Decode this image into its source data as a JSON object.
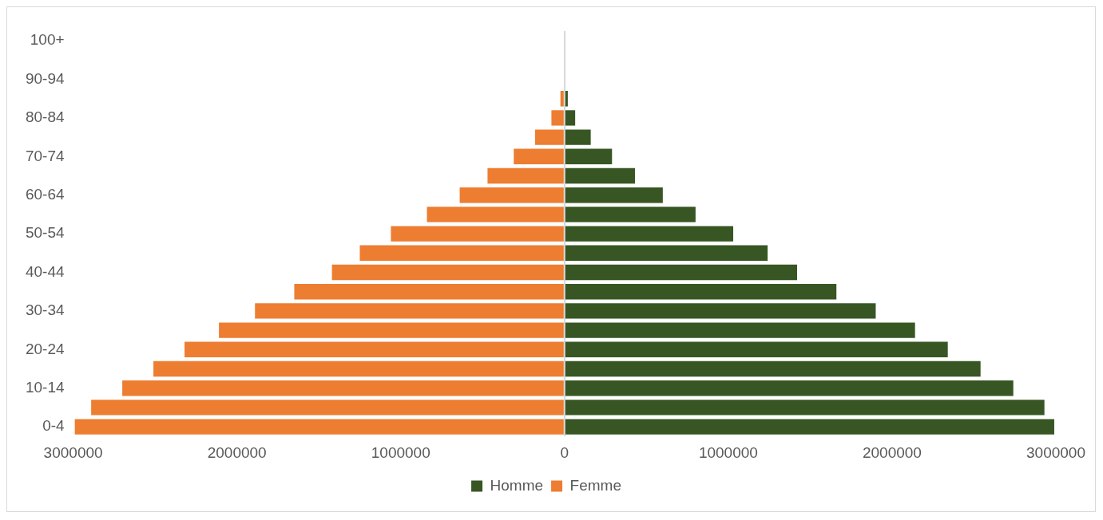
{
  "chart_data": {
    "type": "bar",
    "orientation": "horizontal",
    "stacked": true,
    "categories": [
      "100+",
      null,
      "90-94",
      null,
      "80-84",
      null,
      "70-74",
      null,
      "60-64",
      null,
      "50-54",
      null,
      "40-44",
      null,
      "30-34",
      null,
      "20-24",
      null,
      "10-14",
      null,
      "0-4"
    ],
    "series": [
      {
        "name": "Homme",
        "color": "#375623",
        "values": [
          0,
          0,
          0,
          20000,
          65000,
          160000,
          290000,
          430000,
          600000,
          800000,
          1030000,
          1240000,
          1420000,
          1660000,
          1900000,
          2140000,
          2340000,
          2540000,
          2740000,
          2930000,
          2990000
        ]
      },
      {
        "name": "Femme",
        "color": "#ed7d31",
        "values": [
          0,
          0,
          0,
          -25000,
          -80000,
          -180000,
          -310000,
          -470000,
          -640000,
          -840000,
          -1060000,
          -1250000,
          -1420000,
          -1650000,
          -1890000,
          -2110000,
          -2320000,
          -2510000,
          -2700000,
          -2890000,
          -2990000
        ]
      }
    ],
    "xlim": [
      -3000000,
      3000000
    ],
    "xticks": [
      {
        "value": -3000000,
        "label": "3000000"
      },
      {
        "value": -2000000,
        "label": "2000000"
      },
      {
        "value": -1000000,
        "label": "1000000"
      },
      0,
      1000000,
      2000000,
      3000000
    ],
    "legend": "bottom"
  }
}
